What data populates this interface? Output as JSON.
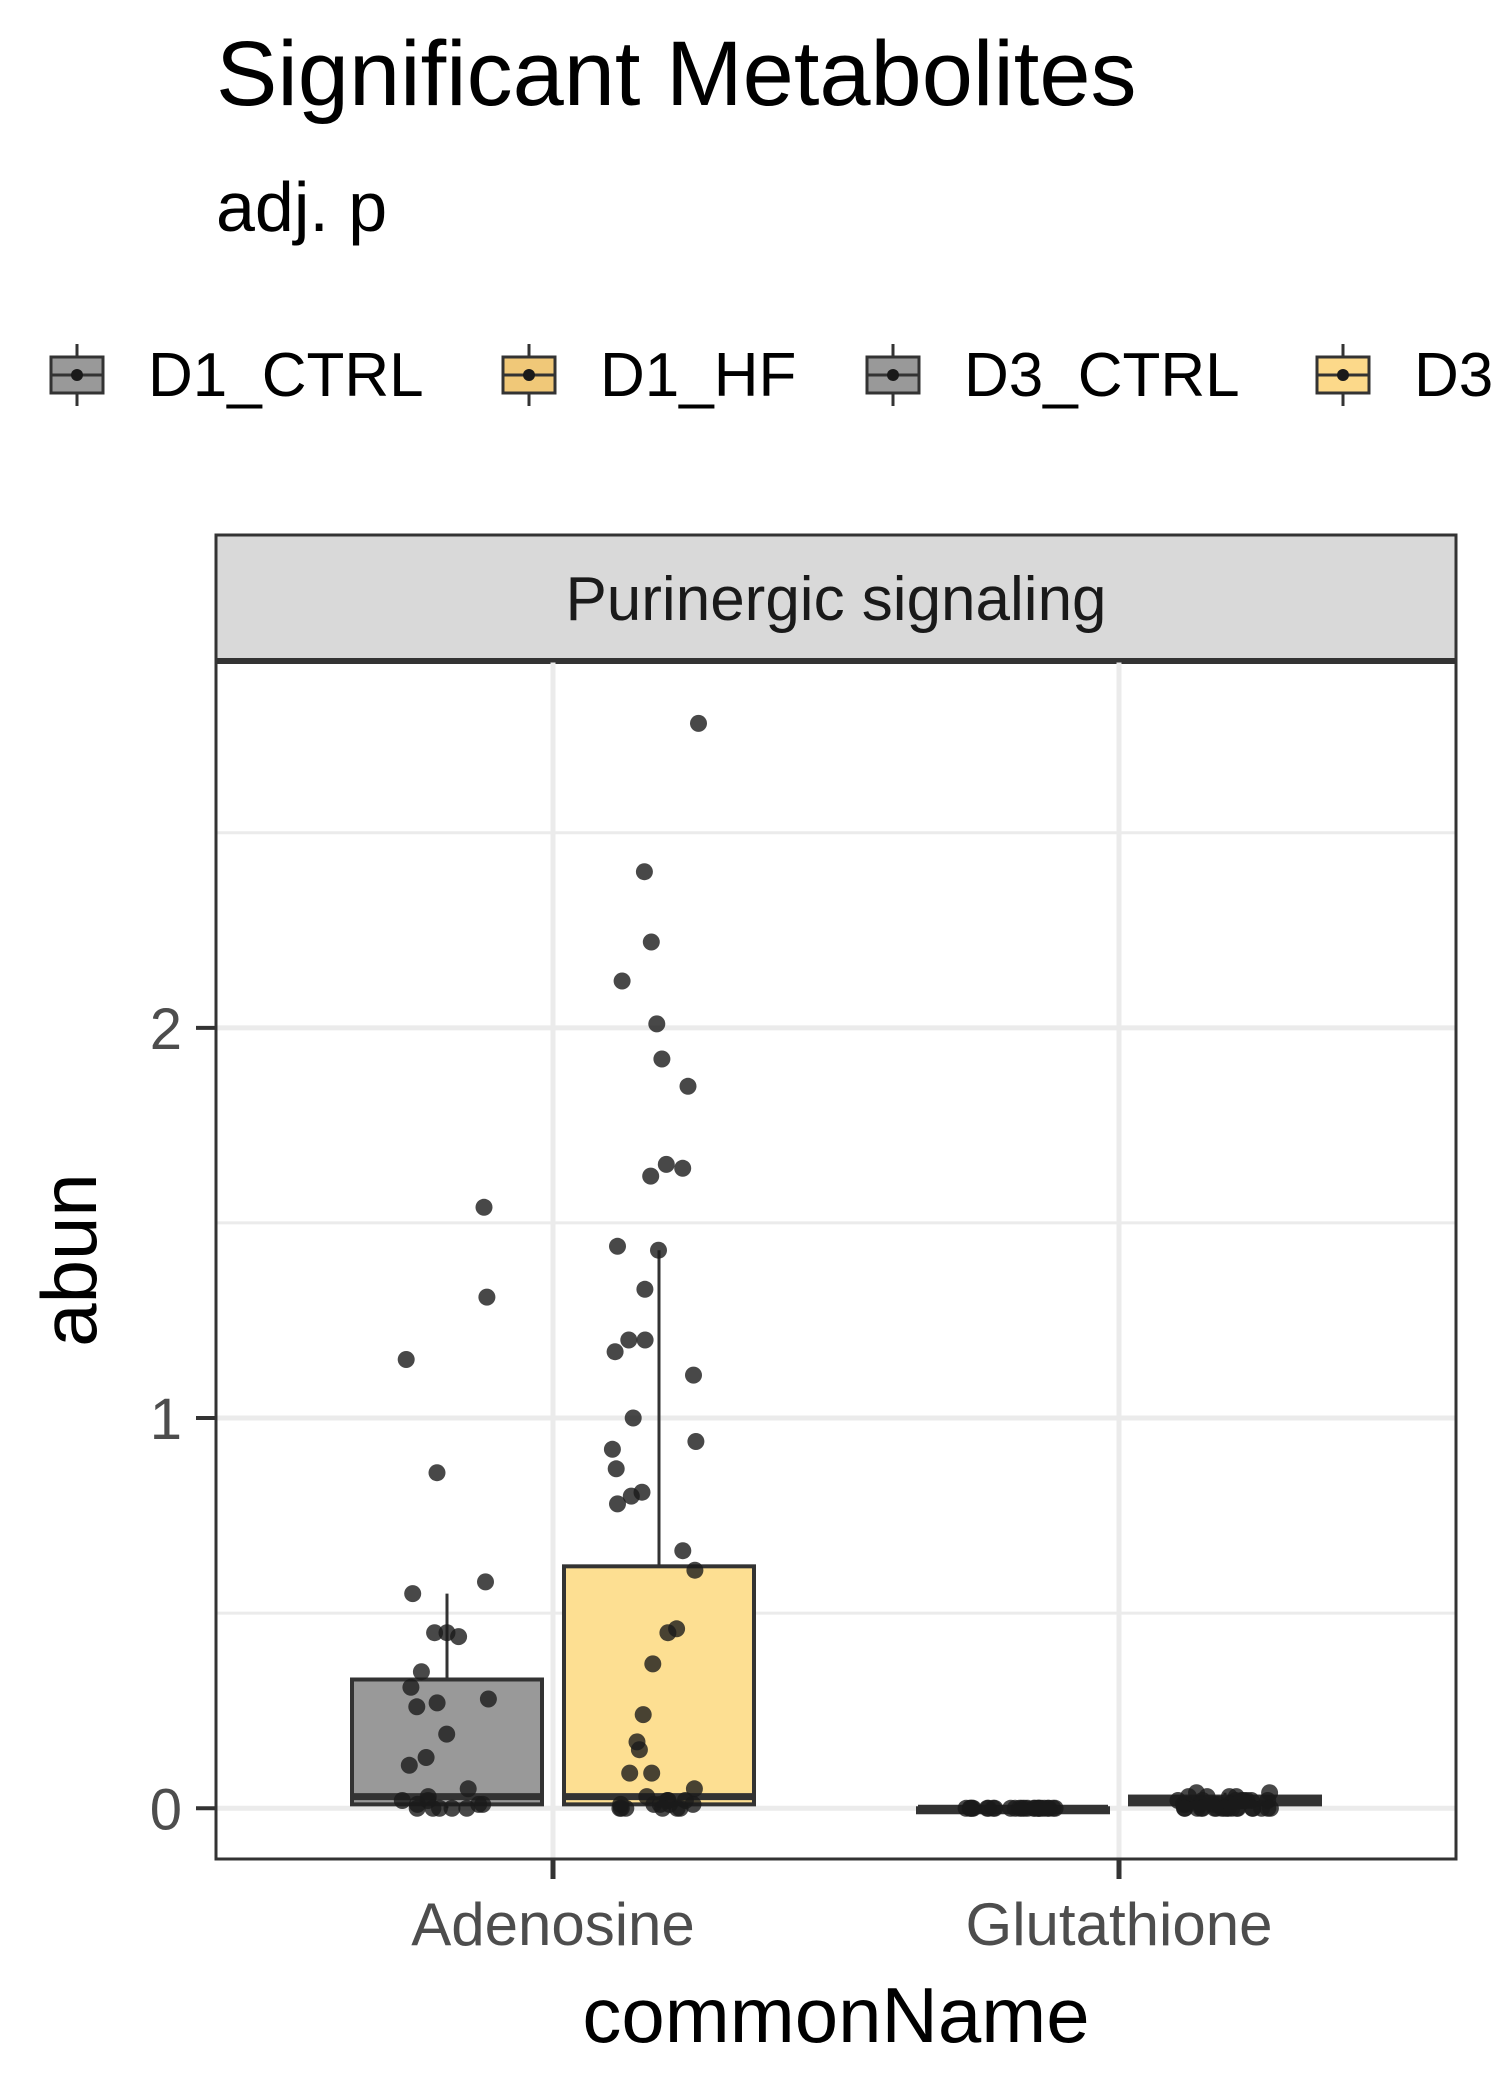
{
  "title": "Significant Metabolites",
  "subtitle": "adj. p",
  "legend": {
    "placement": "top",
    "items": [
      {
        "label": "D1_CTRL",
        "color": "#999999"
      },
      {
        "label": "D1_HF",
        "color": "#F0C878"
      },
      {
        "label": "D3_CTRL",
        "color": "#999999"
      },
      {
        "label": "D3",
        "color": "#FCD98A"
      }
    ]
  },
  "chart_data": {
    "type": "box",
    "facet": "Purinergic signaling",
    "xlabel": "commonName",
    "ylabel": "abun",
    "categories": [
      "Adenosine",
      "Glutathione"
    ],
    "ylim": [
      -0.13,
      2.94
    ],
    "yticks": [
      0,
      1,
      2
    ],
    "grid": true,
    "colors": {
      "box_gray": "#999999",
      "box_gold": "#FDDF92",
      "point": "#1a1a1a",
      "strip": "#d9d9d9"
    },
    "series": [
      {
        "name": "D1_CTRL",
        "category": "Adenosine",
        "box": {
          "q1": 0.01,
          "median": 0.03,
          "q3": 0.33,
          "whisker_low": 0.0,
          "whisker_high": 0.55
        },
        "points": [
          1.54,
          1.31,
          1.15,
          0.86,
          0.58,
          0.55,
          0.45,
          0.45,
          0.44,
          0.35,
          0.31,
          0.28,
          0.27,
          0.26,
          0.19,
          0.13,
          0.11,
          0.05,
          0.03,
          0.02,
          0.02,
          0.01,
          0.01,
          0.01,
          0.0,
          0.0,
          0.0,
          0.0,
          0.0
        ]
      },
      {
        "name": "D1_HF",
        "category": "Adenosine",
        "box": {
          "q1": 0.01,
          "median": 0.03,
          "q3": 0.62,
          "whisker_low": 0.0,
          "whisker_high": 1.43
        },
        "points": [
          2.78,
          2.4,
          2.22,
          2.12,
          2.01,
          1.92,
          1.85,
          1.65,
          1.64,
          1.62,
          1.44,
          1.43,
          1.33,
          1.2,
          1.2,
          1.17,
          1.11,
          1.0,
          0.94,
          0.92,
          0.87,
          0.81,
          0.8,
          0.78,
          0.66,
          0.61,
          0.46,
          0.45,
          0.37,
          0.24,
          0.17,
          0.15,
          0.09,
          0.09,
          0.05,
          0.03,
          0.02,
          0.02,
          0.02,
          0.01,
          0.01,
          0.01,
          0.01,
          0.01,
          0.0,
          0.0,
          0.0,
          0.0,
          0.0,
          0.0
        ]
      },
      {
        "name": "D3_CTRL",
        "category": "Glutathione",
        "box": {
          "q1": 0.0,
          "median": 0.0,
          "q3": 0.0,
          "whisker_low": 0.0,
          "whisker_high": 0.0
        },
        "points": [
          0.0,
          0.0,
          0.0,
          0.0,
          0.0,
          0.0,
          0.0,
          0.0,
          0.0,
          0.0,
          0.0,
          0.0,
          0.0,
          0.0,
          0.0,
          0.0,
          0.0,
          0.0,
          0.0,
          0.0,
          0.0,
          0.0,
          0.0,
          0.0,
          0.0,
          0.0
        ]
      },
      {
        "name": "D3",
        "category": "Glutathione",
        "box": {
          "q1": 0.01,
          "median": 0.02,
          "q3": 0.03,
          "whisker_low": 0.0,
          "whisker_high": 0.04
        },
        "points": [
          0.04,
          0.04,
          0.03,
          0.03,
          0.03,
          0.03,
          0.02,
          0.02,
          0.02,
          0.02,
          0.02,
          0.02,
          0.02,
          0.02,
          0.01,
          0.01,
          0.01,
          0.01,
          0.01,
          0.01,
          0.01,
          0.0,
          0.0,
          0.0,
          0.0,
          0.0,
          0.0,
          0.0,
          0.0,
          0.0,
          0.0,
          0.0,
          0.0,
          0.0,
          0.0,
          0.0,
          0.0,
          0.0,
          0.0,
          0.0
        ]
      }
    ]
  }
}
